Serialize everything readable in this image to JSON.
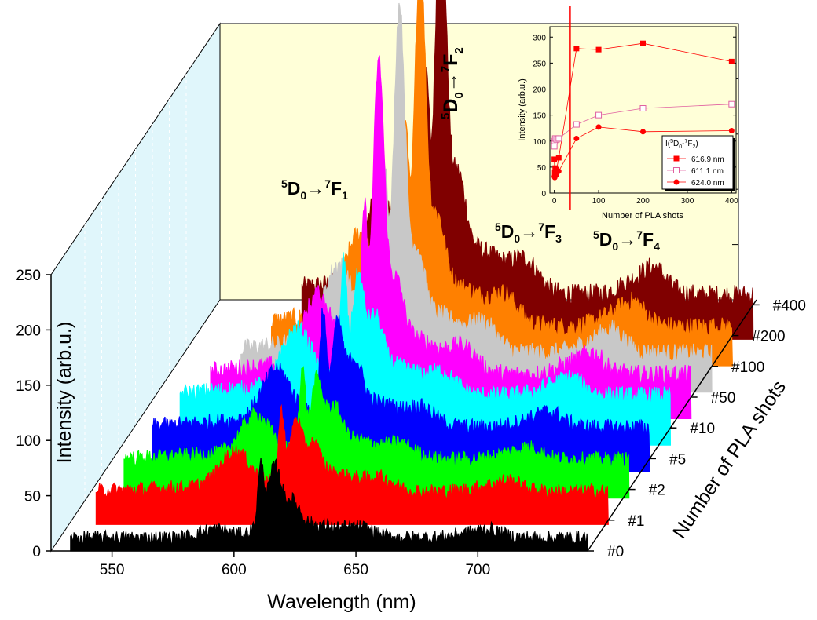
{
  "chart_data": {
    "type": "line",
    "subtype": "3D waterfall",
    "xlabel": "Wavelength (nm)",
    "ylabel": "Intensity (arb.u.)",
    "zlabel": "Number of PLA shots",
    "xlim": [
      525,
      745
    ],
    "ylim": [
      0,
      250
    ],
    "xticks": [
      "550",
      "600",
      "650",
      "700"
    ],
    "yticks": [
      "0",
      "50",
      "100",
      "150",
      "200",
      "250"
    ],
    "series": [
      {
        "name": "#0",
        "color": "#000000"
      },
      {
        "name": "#1",
        "color": "#ff0000"
      },
      {
        "name": "#2",
        "color": "#00ff00"
      },
      {
        "name": "#5",
        "color": "#0000ff"
      },
      {
        "name": "#10",
        "color": "#00ffff"
      },
      {
        "name": "#50",
        "color": "#ff00ff"
      },
      {
        "name": "#100",
        "color": "#c8c8c8"
      },
      {
        "name": "#200",
        "color": "#ff8000"
      },
      {
        "name": "#400",
        "color": "#800000"
      }
    ],
    "annotations": [
      {
        "sup1": "5",
        "main1": "D",
        "sub": "0",
        "arrow": "→",
        "sup2": "7",
        "main2": "F",
        "sub2": "1"
      },
      {
        "sup1": "5",
        "main1": "D",
        "sub": "0",
        "arrow": "→",
        "sup2": "7",
        "main2": "F",
        "sub2": "2"
      },
      {
        "sup1": "5",
        "main1": "D",
        "sub": "0",
        "arrow": "→",
        "sup2": "7",
        "main2": "F",
        "sub2": "3"
      },
      {
        "sup1": "5",
        "main1": "D",
        "sub": "0",
        "arrow": "→",
        "sup2": "7",
        "main2": "F",
        "sub2": "4"
      }
    ],
    "inset": {
      "type": "line",
      "xlabel": "Number of PLA shots",
      "ylabel": "Intensity (arb.u.)",
      "xlim": [
        -10,
        410
      ],
      "ylim": [
        0,
        320
      ],
      "xticks": [
        "0",
        "100",
        "200",
        "300",
        "400"
      ],
      "yticks": [
        "0",
        "50",
        "100",
        "150",
        "200",
        "250",
        "300"
      ],
      "legend_title": "I(5D0-7F2)",
      "x": [
        0,
        1,
        2,
        5,
        10,
        50,
        100,
        200,
        400
      ],
      "series": [
        {
          "name": "616.9 nm",
          "marker": "filled-square",
          "color": "#ff0000",
          "values": [
            65,
            40,
            48,
            45,
            68,
            278,
            276,
            288,
            253
          ]
        },
        {
          "name": "611.1 nm",
          "marker": "open-square",
          "color": "#e060a0",
          "values": [
            90,
            100,
            105,
            103,
            105,
            132,
            150,
            163,
            171
          ]
        },
        {
          "name": "624.0 nm",
          "marker": "filled-circle",
          "color": "#ff0000",
          "values": [
            32,
            30,
            33,
            35,
            42,
            105,
            127,
            118,
            120
          ]
        }
      ],
      "marker_line_x": 35
    }
  }
}
